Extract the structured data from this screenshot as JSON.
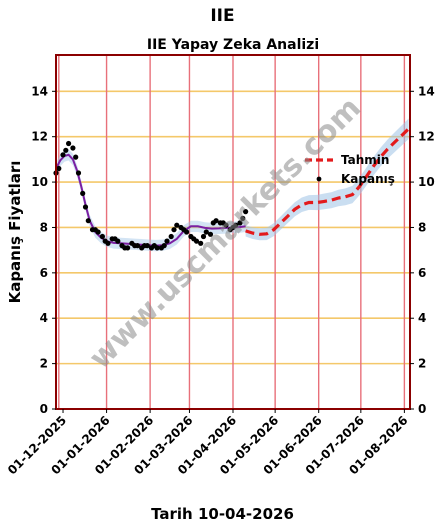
{
  "figure_title": "IIE",
  "date_label": "Tarih 10-04-2026",
  "watermark": "www.uscmarkets.com",
  "chart_data": {
    "type": "line",
    "title": "IIE Yapay Zeka Analizi",
    "ylabel": "Kapanış Fiyatları",
    "xlabel": "",
    "ylim": [
      0,
      15.6
    ],
    "xlim": [
      "2025-11-26",
      "2026-08-05"
    ],
    "yticks": [
      0,
      2,
      4,
      6,
      8,
      10,
      12,
      14
    ],
    "xticks": [
      "01-12-2025",
      "01-01-2026",
      "01-02-2026",
      "01-03-2026",
      "01-04-2026",
      "01-05-2026",
      "01-06-2026",
      "01-07-2026",
      "01-08-2026"
    ],
    "vlines": [
      "2025-11-28",
      "2026-01-01",
      "2026-02-01",
      "2026-03-01",
      "2026-04-01",
      "2026-05-01",
      "2026-06-01",
      "2026-07-01",
      "2026-08-01"
    ],
    "grid": "horizontal",
    "legend_position": "right",
    "colors": {
      "prediction": "#e31a1c",
      "band": "#9ec3e6",
      "fit": "#7b1fa2",
      "frame": "#8b0000",
      "hgrid": "#f4c86a",
      "vgrid": "#e8707a",
      "close": "#000000"
    },
    "series": [
      {
        "name": "Kapanış",
        "style": "scatter",
        "x": [
          "2025-11-26",
          "2025-11-28",
          "2025-12-01",
          "2025-12-03",
          "2025-12-05",
          "2025-12-08",
          "2025-12-10",
          "2025-12-12",
          "2025-12-15",
          "2025-12-17",
          "2025-12-19",
          "2025-12-22",
          "2025-12-24",
          "2025-12-26",
          "2025-12-29",
          "2025-12-31",
          "2026-01-02",
          "2026-01-05",
          "2026-01-07",
          "2026-01-09",
          "2026-01-12",
          "2026-01-14",
          "2026-01-16",
          "2026-01-19",
          "2026-01-21",
          "2026-01-23",
          "2026-01-26",
          "2026-01-28",
          "2026-01-30",
          "2026-02-02",
          "2026-02-04",
          "2026-02-06",
          "2026-02-09",
          "2026-02-11",
          "2026-02-13",
          "2026-02-16",
          "2026-02-18",
          "2026-02-20",
          "2026-02-23",
          "2026-02-25",
          "2026-02-27",
          "2026-03-02",
          "2026-03-04",
          "2026-03-06",
          "2026-03-09",
          "2026-03-11",
          "2026-03-13",
          "2026-03-16",
          "2026-03-18",
          "2026-03-20",
          "2026-03-23",
          "2026-03-25",
          "2026-03-27",
          "2026-03-30",
          "2026-04-01",
          "2026-04-03",
          "2026-04-06",
          "2026-04-08",
          "2026-04-10"
        ],
        "y": [
          10.4,
          10.6,
          11.2,
          11.4,
          11.7,
          11.5,
          11.1,
          10.4,
          9.5,
          8.9,
          8.3,
          7.9,
          7.9,
          7.8,
          7.6,
          7.4,
          7.3,
          7.5,
          7.5,
          7.4,
          7.2,
          7.1,
          7.1,
          7.3,
          7.2,
          7.2,
          7.1,
          7.2,
          7.2,
          7.1,
          7.2,
          7.1,
          7.1,
          7.2,
          7.4,
          7.6,
          7.9,
          8.1,
          8.0,
          7.9,
          7.8,
          7.6,
          7.5,
          7.4,
          7.3,
          7.6,
          7.8,
          7.7,
          8.2,
          8.3,
          8.2,
          8.2,
          8.1,
          7.9,
          8.0,
          8.1,
          8.2,
          8.4,
          8.7
        ]
      },
      {
        "name": "",
        "style": "fit",
        "x": [
          "2025-11-26",
          "2025-11-29",
          "2025-12-02",
          "2025-12-05",
          "2025-12-08",
          "2025-12-11",
          "2025-12-14",
          "2025-12-17",
          "2025-12-20",
          "2025-12-24",
          "2025-12-28",
          "2026-01-01",
          "2026-01-06",
          "2026-01-11",
          "2026-01-16",
          "2026-01-21",
          "2026-01-26",
          "2026-01-31",
          "2026-02-05",
          "2026-02-10",
          "2026-02-15",
          "2026-02-20",
          "2026-02-25",
          "2026-03-02",
          "2026-03-07",
          "2026-03-12",
          "2026-03-17",
          "2026-03-22",
          "2026-03-27",
          "2026-04-01",
          "2026-04-06",
          "2026-04-10"
        ],
        "y": [
          10.6,
          10.95,
          11.15,
          11.2,
          11.0,
          10.5,
          9.8,
          9.0,
          8.3,
          7.8,
          7.55,
          7.4,
          7.32,
          7.3,
          7.28,
          7.26,
          7.24,
          7.22,
          7.2,
          7.22,
          7.3,
          7.5,
          7.85,
          8.05,
          8.05,
          7.98,
          7.95,
          7.96,
          7.98,
          8.0,
          8.02,
          8.05
        ]
      },
      {
        "name": "Tahmin",
        "style": "dashed",
        "x": [
          "2026-04-10",
          "2026-04-15",
          "2026-04-20",
          "2026-04-25",
          "2026-04-30",
          "2026-05-05",
          "2026-05-10",
          "2026-05-15",
          "2026-05-20",
          "2026-05-25",
          "2026-05-31",
          "2026-06-05",
          "2026-06-10",
          "2026-06-15",
          "2026-06-20",
          "2026-06-25",
          "2026-06-30",
          "2026-07-05",
          "2026-07-10",
          "2026-07-15",
          "2026-07-20",
          "2026-07-25",
          "2026-07-30",
          "2026-08-04"
        ],
        "y": [
          7.85,
          7.75,
          7.7,
          7.72,
          7.9,
          8.2,
          8.5,
          8.8,
          9.0,
          9.1,
          9.1,
          9.15,
          9.2,
          9.3,
          9.35,
          9.45,
          9.8,
          10.25,
          10.7,
          11.1,
          11.45,
          11.75,
          12.05,
          12.35
        ]
      }
    ]
  }
}
